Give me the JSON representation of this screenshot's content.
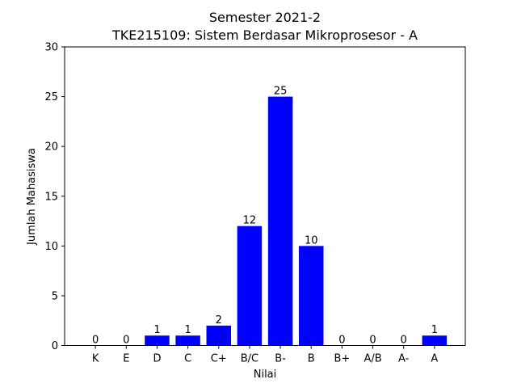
{
  "chart_data": {
    "type": "bar",
    "title": "Semester 2021-2",
    "subtitle": "TKE215109: Sistem Berdasar Mikroprosesor - A",
    "xlabel": "Nilai",
    "ylabel": "Jumlah Mahasiswa",
    "categories": [
      "K",
      "E",
      "D",
      "C",
      "C+",
      "B/C",
      "B-",
      "B",
      "B+",
      "A/B",
      "A-",
      "A"
    ],
    "values": [
      0,
      0,
      1,
      1,
      2,
      12,
      25,
      10,
      0,
      0,
      0,
      1
    ],
    "ylim": [
      0,
      30
    ],
    "yticks": [
      0,
      5,
      10,
      15,
      20,
      25,
      30
    ],
    "bar_color": "#0000ff",
    "grid": false,
    "legend": "none"
  }
}
